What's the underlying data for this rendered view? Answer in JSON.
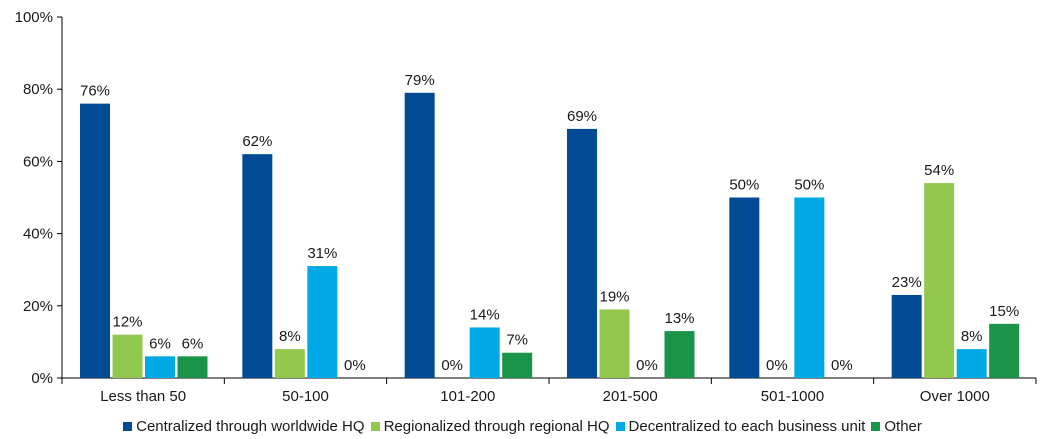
{
  "chart_data": {
    "type": "bar",
    "title": "",
    "xlabel": "",
    "ylabel": "",
    "ylim": [
      0,
      100
    ],
    "yticks": [
      "0%",
      "20%",
      "40%",
      "60%",
      "80%",
      "100%"
    ],
    "categories": [
      "Less than 50",
      "50-100",
      "101-200",
      "201-500",
      "501-1000",
      "Over 1000"
    ],
    "series": [
      {
        "name": "Centralized through worldwide HQ",
        "color": "#004b93",
        "values": [
          76,
          62,
          79,
          69,
          50,
          23
        ],
        "labels": [
          "76%",
          "62%",
          "79%",
          "69%",
          "50%",
          "23%"
        ]
      },
      {
        "name": "Regionalized through regional HQ",
        "color": "#92c84d",
        "values": [
          12,
          8,
          0,
          19,
          0,
          54
        ],
        "labels": [
          "12%",
          "8%",
          "0%",
          "19%",
          "0%",
          "54%"
        ]
      },
      {
        "name": "Decentralized to each business unit",
        "color": "#00a8e5",
        "values": [
          6,
          31,
          14,
          0,
          50,
          8
        ],
        "labels": [
          "6%",
          "31%",
          "14%",
          "0%",
          "50%",
          "8%"
        ]
      },
      {
        "name": "Other",
        "color": "#1a9448",
        "values": [
          6,
          0,
          7,
          13,
          0,
          15
        ],
        "labels": [
          "6%",
          "0%",
          "7%",
          "13%",
          "0%",
          "15%"
        ]
      }
    ],
    "grid": false,
    "legend": "bottom"
  }
}
